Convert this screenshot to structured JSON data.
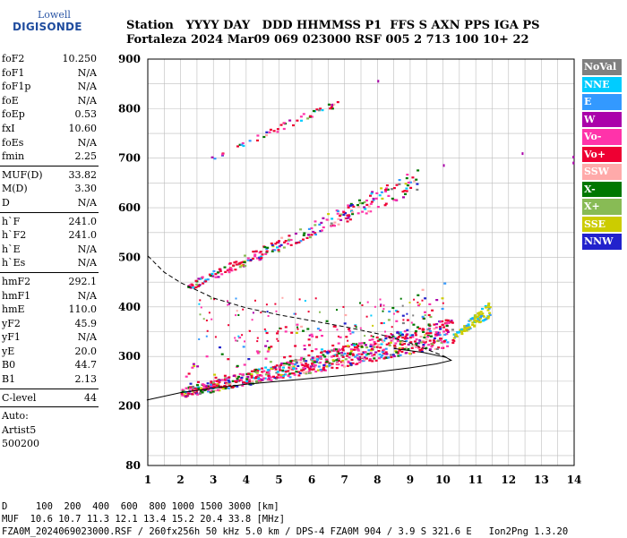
{
  "logo": {
    "line1": "Lowell",
    "line2": "DIGISONDE"
  },
  "header": {
    "line1": "Station   YYYY DAY   DDD HHMMSS P1  FFS S AXN PPS IGA PS",
    "line2": "Fortaleza 2024 Mar09 069 023000 RSF 005 2 713 100 10+ 22"
  },
  "params": [
    {
      "label": "foF2",
      "value": "10.250"
    },
    {
      "label": "foF1",
      "value": "N/A"
    },
    {
      "label": "foF1p",
      "value": "N/A"
    },
    {
      "label": "foE",
      "value": "N/A"
    },
    {
      "label": "foEp",
      "value": "0.53"
    },
    {
      "label": "fxI",
      "value": "10.60"
    },
    {
      "label": "foEs",
      "value": "N/A"
    },
    {
      "label": "fmin",
      "value": "2.25"
    },
    {
      "sep": true
    },
    {
      "label": "MUF(D)",
      "value": "33.82"
    },
    {
      "label": "M(D)",
      "value": "3.30"
    },
    {
      "label": "D",
      "value": "N/A"
    },
    {
      "sep": true
    },
    {
      "label": "h`F",
      "value": "241.0"
    },
    {
      "label": "h`F2",
      "value": "241.0"
    },
    {
      "label": "h`E",
      "value": "N/A"
    },
    {
      "label": "h`Es",
      "value": "N/A"
    },
    {
      "sep": true
    },
    {
      "label": "hmF2",
      "value": "292.1"
    },
    {
      "label": "hmF1",
      "value": "N/A"
    },
    {
      "label": "hmE",
      "value": "110.0"
    },
    {
      "label": "yF2",
      "value": "45.9"
    },
    {
      "label": "yF1",
      "value": "N/A"
    },
    {
      "label": "yE",
      "value": "20.0"
    },
    {
      "label": "B0",
      "value": "44.7"
    },
    {
      "label": "B1",
      "value": "2.13"
    },
    {
      "sep": true
    },
    {
      "label": "C-level",
      "value": "44"
    },
    {
      "sep": true
    },
    {
      "text": "Auto:"
    },
    {
      "text": "Artist5"
    },
    {
      "text": "500200"
    }
  ],
  "legend": [
    {
      "label": "NoVal",
      "color": "#808080"
    },
    {
      "label": "NNE",
      "color": "#00ccff"
    },
    {
      "label": "E",
      "color": "#3399ff"
    },
    {
      "label": "W",
      "color": "#aa00aa"
    },
    {
      "label": "Vo-",
      "color": "#ff33aa"
    },
    {
      "label": "Vo+",
      "color": "#ee0033"
    },
    {
      "label": "SSW",
      "color": "#ffaaaa"
    },
    {
      "label": "X-",
      "color": "#007700"
    },
    {
      "label": "X+",
      "color": "#88bb55"
    },
    {
      "label": "SSE",
      "color": "#cccc00"
    },
    {
      "label": "NNW",
      "color": "#2222cc"
    }
  ],
  "bottom": {
    "line1": "D     100  200  400  600  800 1000 1500 3000 [km]",
    "line2": "MUF  10.6 10.7 11.3 12.1 13.4 15.2 20.4 33.8 [MHz]",
    "line3": "FZA0M_2024069023000.RSF / 260fx256h 50 kHz 5.0 km / DPS-4 FZA0M 904 / 3.9 S 321.6 E   Ion2Png 1.3.20"
  },
  "chart_data": {
    "type": "scatter",
    "title": "",
    "xlabel": "",
    "ylabel": "",
    "xlim": [
      1,
      14
    ],
    "ylim": [
      80,
      900
    ],
    "x_ticks": [
      1,
      2,
      3,
      4,
      5,
      6,
      7,
      8,
      9,
      10,
      11,
      12,
      13,
      14
    ],
    "y_ticks": [
      80,
      200,
      300,
      400,
      500,
      600,
      700,
      800,
      900
    ],
    "grid": true,
    "legend_position": "right",
    "echo_traces": [
      {
        "name": "O-trace F2",
        "f_start": 2.0,
        "f_end": 10.3,
        "h_start": 225,
        "h_end": 330,
        "spread": 45
      },
      {
        "name": "second hop",
        "f_start": 2.2,
        "f_end": 9.2,
        "h_start": 440,
        "h_end": 640,
        "spread": 35
      },
      {
        "name": "third hop",
        "f_start": 2.9,
        "f_end": 6.8,
        "h_start": 700,
        "h_end": 810,
        "spread": 15
      },
      {
        "name": "upper patch",
        "f_start": 10.3,
        "f_end": 11.4,
        "h_start": 340,
        "h_end": 385,
        "spread": 25
      }
    ],
    "profile_solid": [
      {
        "f": 0.97,
        "h": 212
      },
      {
        "f": 2,
        "h": 227
      },
      {
        "f": 3,
        "h": 236
      },
      {
        "f": 4,
        "h": 244
      },
      {
        "f": 5,
        "h": 250
      },
      {
        "f": 6,
        "h": 256
      },
      {
        "f": 7,
        "h": 262
      },
      {
        "f": 8,
        "h": 269
      },
      {
        "f": 9,
        "h": 277
      },
      {
        "f": 9.8,
        "h": 285
      },
      {
        "f": 10.25,
        "h": 292
      },
      {
        "f": 10.1,
        "h": 298
      },
      {
        "f": 9.4,
        "h": 308
      },
      {
        "f": 8.5,
        "h": 316
      }
    ],
    "profile_dashed": [
      {
        "f": 1.0,
        "h": 503
      },
      {
        "f": 1.5,
        "h": 470
      },
      {
        "f": 2,
        "h": 449
      },
      {
        "f": 3,
        "h": 418
      },
      {
        "f": 4,
        "h": 398
      },
      {
        "f": 5,
        "h": 384
      },
      {
        "f": 6,
        "h": 372
      },
      {
        "f": 7,
        "h": 360
      },
      {
        "f": 8,
        "h": 346
      },
      {
        "f": 9,
        "h": 327
      },
      {
        "f": 9.6,
        "h": 312
      },
      {
        "f": 10.05,
        "h": 300
      },
      {
        "f": 10.25,
        "h": 292
      }
    ],
    "isolated_points": [
      {
        "f": 8.0,
        "h": 858
      },
      {
        "f": 6.6,
        "h": 810
      },
      {
        "f": 10.0,
        "h": 688
      },
      {
        "f": 12.4,
        "h": 712
      },
      {
        "f": 13.95,
        "h": 705
      },
      {
        "f": 13.95,
        "h": 693
      }
    ]
  }
}
